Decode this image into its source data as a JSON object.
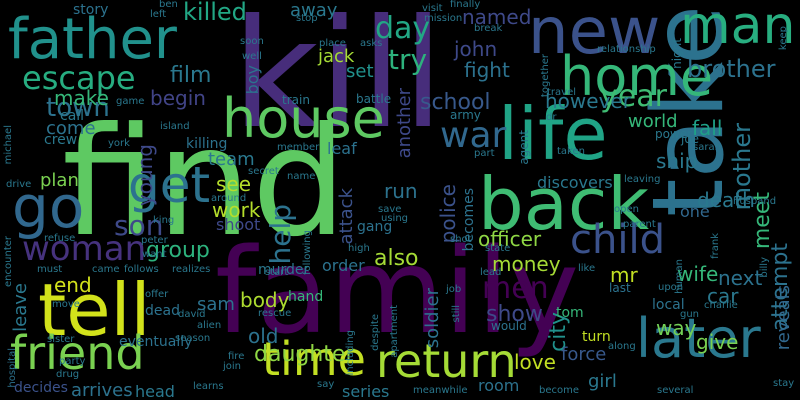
{
  "words": [
    {
      "text": "find",
      "color": "#5ec962",
      "rot": 0
    },
    {
      "text": "family",
      "color": "#440154",
      "rot": 0
    },
    {
      "text": "take",
      "color": "#2c728e",
      "rot": 90
    },
    {
      "text": "kill",
      "color": "#472d7b",
      "rot": 0
    },
    {
      "text": "father",
      "color": "#21918c",
      "rot": 0
    },
    {
      "text": "new",
      "color": "#3b528b",
      "rot": 0
    },
    {
      "text": "man",
      "color": "#28ae80",
      "rot": 0
    },
    {
      "text": "life",
      "color": "#20a486",
      "rot": 0
    },
    {
      "text": "back",
      "color": "#3fbc73",
      "rot": 0
    },
    {
      "text": "house",
      "color": "#5ec962",
      "rot": 0
    },
    {
      "text": "home",
      "color": "#35b779",
      "rot": 0
    },
    {
      "text": "tell",
      "color": "#d2e21b",
      "rot": 0
    },
    {
      "text": "go",
      "color": "#31688e",
      "rot": 0
    },
    {
      "text": "get",
      "color": "#2c728e",
      "rot": 0
    },
    {
      "text": "friend",
      "color": "#7ad151",
      "rot": 0
    },
    {
      "text": "time",
      "color": "#c2df23",
      "rot": 0
    },
    {
      "text": "return",
      "color": "#a5db36",
      "rot": 0
    },
    {
      "text": "later",
      "color": "#2a788e",
      "rot": 0
    },
    {
      "text": "child",
      "color": "#3b528b",
      "rot": 0
    },
    {
      "text": "woman",
      "color": "#46327e",
      "rot": 0
    },
    {
      "text": "escape",
      "color": "#27ad81",
      "rot": 0
    },
    {
      "text": "day",
      "color": "#22a785",
      "rot": 0
    },
    {
      "text": "try",
      "color": "#2db27d",
      "rot": 0
    },
    {
      "text": "war",
      "color": "#31688e",
      "rot": 0
    },
    {
      "text": "year",
      "color": "#3fbc73",
      "rot": 0
    },
    {
      "text": "brother",
      "color": "#2c728e",
      "rot": 0
    },
    {
      "text": "town",
      "color": "#2c728e",
      "rot": 0
    },
    {
      "text": "son",
      "color": "#3e4989",
      "rot": 0
    },
    {
      "text": "men",
      "color": "#440154",
      "rot": 0
    },
    {
      "text": "way",
      "color": "#73d056",
      "rot": 0
    },
    {
      "text": "killed",
      "color": "#22a785",
      "rot": 0
    },
    {
      "text": "film",
      "color": "#2a788e",
      "rot": 0
    },
    {
      "text": "make",
      "color": "#35b779",
      "rot": 0
    },
    {
      "text": "begin",
      "color": "#414487",
      "rot": 0
    },
    {
      "text": "school",
      "color": "#38598c",
      "rot": 0
    },
    {
      "text": "however",
      "color": "#2a788e",
      "rot": 0
    },
    {
      "text": "john",
      "color": "#3e4989",
      "rot": 0
    },
    {
      "text": "fight",
      "color": "#2c728e",
      "rot": 0
    },
    {
      "text": "jack",
      "color": "#a5db36",
      "rot": 0
    },
    {
      "text": "set",
      "color": "#21918c",
      "rot": 0
    },
    {
      "text": "named",
      "color": "#3e4989",
      "rot": 0
    },
    {
      "text": "mother",
      "color": "#2a788e",
      "rot": 90
    },
    {
      "text": "help",
      "color": "#2c728e",
      "rot": 90
    },
    {
      "text": "group",
      "color": "#2db27d",
      "rot": 0
    },
    {
      "text": "death",
      "color": "#2a788e",
      "rot": 0
    },
    {
      "text": "see",
      "color": "#b5de2b",
      "rot": 0
    },
    {
      "text": "work",
      "color": "#b5de2b",
      "rot": 0
    },
    {
      "text": "meet",
      "color": "#35b779",
      "rot": 90
    },
    {
      "text": "attempt",
      "color": "#2c728e",
      "rot": 90
    },
    {
      "text": "city",
      "color": "#21918c",
      "rot": 90
    },
    {
      "text": "show",
      "color": "#3e4989",
      "rot": 0
    },
    {
      "text": "also",
      "color": "#a5db36",
      "rot": 0
    },
    {
      "text": "love",
      "color": "#c2df23",
      "rot": 0
    },
    {
      "text": "daughter",
      "color": "#8fd744",
      "rot": 0
    },
    {
      "text": "body",
      "color": "#addc30",
      "rot": 0
    },
    {
      "text": "old",
      "color": "#2c728e",
      "rot": 0
    },
    {
      "text": "give",
      "color": "#7ad151",
      "rot": 0
    },
    {
      "text": "fall",
      "color": "#1fa088",
      "rot": 0
    },
    {
      "text": "team",
      "color": "#2a788e",
      "rot": 0
    },
    {
      "text": "plan",
      "color": "#7ad151",
      "rot": 0
    },
    {
      "text": "end",
      "color": "#d2e21b",
      "rot": 0
    },
    {
      "text": "run",
      "color": "#2c728e",
      "rot": 0
    },
    {
      "text": "police",
      "color": "#3b528b",
      "rot": 90
    },
    {
      "text": "officer",
      "color": "#8fd744",
      "rot": 0
    },
    {
      "text": "money",
      "color": "#a5db36",
      "rot": 0
    },
    {
      "text": "wife",
      "color": "#35b779",
      "rot": 0
    },
    {
      "text": "next",
      "color": "#2c728e",
      "rot": 0
    },
    {
      "text": "car",
      "color": "#2a788e",
      "rot": 0
    },
    {
      "text": "ship",
      "color": "#2a788e",
      "rot": 0
    },
    {
      "text": "world",
      "color": "#35b779",
      "rot": 0
    },
    {
      "text": "come",
      "color": "#2c728e",
      "rot": 0
    },
    {
      "text": "discovers",
      "color": "#2a788e",
      "rot": 0
    },
    {
      "text": "another",
      "color": "#3e4989",
      "rot": 90
    },
    {
      "text": "soldier",
      "color": "#2c728e",
      "rot": 90
    },
    {
      "text": "attack",
      "color": "#3b528b",
      "rot": 90
    },
    {
      "text": "order",
      "color": "#2c728e",
      "rot": 0
    },
    {
      "text": "shoot",
      "color": "#3e4989",
      "rot": 0
    },
    {
      "text": "leave",
      "color": "#2a788e",
      "rot": 90
    },
    {
      "text": "force",
      "color": "#38598c",
      "rot": 0
    },
    {
      "text": "girl",
      "color": "#2a788e",
      "rot": 0
    },
    {
      "text": "room",
      "color": "#2c728e",
      "rot": 0
    },
    {
      "text": "series",
      "color": "#2a788e",
      "rot": 0
    },
    {
      "text": "head",
      "color": "#2a788e",
      "rot": 0
    },
    {
      "text": "arrives",
      "color": "#2c728e",
      "rot": 0
    },
    {
      "text": "decides",
      "color": "#3b528b",
      "rot": 0
    },
    {
      "text": "murder",
      "color": "#2a788e",
      "rot": 0
    },
    {
      "text": "reveals",
      "color": "#31688e",
      "rot": 90
    },
    {
      "text": "young",
      "color": "#3e4989",
      "rot": 90
    },
    {
      "text": "turn",
      "color": "#c2df23",
      "rot": 0
    },
    {
      "text": "mr",
      "color": "#c2df23",
      "rot": 0
    },
    {
      "text": "one",
      "color": "#31688e",
      "rot": 0
    },
    {
      "text": "away",
      "color": "#2a788e",
      "rot": 0
    },
    {
      "text": "boy",
      "color": "#2c728e",
      "rot": 90
    },
    {
      "text": "story",
      "color": "#2c728e",
      "rot": 0
    },
    {
      "text": "sam",
      "color": "#2c728e",
      "rot": 0
    },
    {
      "text": "leaf",
      "color": "#2c728e",
      "rot": 0
    },
    {
      "text": "becomes",
      "color": "#2c728e",
      "rot": 90
    },
    {
      "text": "gang",
      "color": "#2c728e",
      "rot": 0
    },
    {
      "text": "eventually",
      "color": "#2c728e",
      "rot": 0
    },
    {
      "text": "killing",
      "color": "#2c728e",
      "rot": 0
    },
    {
      "text": "call",
      "color": "#2a788e",
      "rot": 0
    },
    {
      "text": "crew",
      "color": "#2a788e",
      "rot": 0
    },
    {
      "text": "hand",
      "color": "#35b779",
      "rot": 0
    },
    {
      "text": "tom",
      "color": "#35b779",
      "rot": 0
    },
    {
      "text": "dead",
      "color": "#2c728e",
      "rot": 0
    },
    {
      "text": "last",
      "color": "#2c728e",
      "rot": 0
    },
    {
      "text": "local",
      "color": "#2c728e",
      "rot": 0
    },
    {
      "text": "would",
      "color": "#2c728e",
      "rot": 0
    },
    {
      "text": "hospital",
      "color": "#2c728e",
      "rot": 90
    },
    {
      "text": "soon",
      "color": "#2a788e",
      "rot": 0
    },
    {
      "text": "well",
      "color": "#2a788e",
      "rot": 0
    },
    {
      "text": "train",
      "color": "#2a788e",
      "rot": 0
    },
    {
      "text": "battle",
      "color": "#2a788e",
      "rot": 0
    },
    {
      "text": "army",
      "color": "#2a788e",
      "rot": 0
    },
    {
      "text": "travel",
      "color": "#2a788e",
      "rot": 0
    },
    {
      "text": "agent",
      "color": "#2a788e",
      "rot": 90
    },
    {
      "text": "power",
      "color": "#2a788e",
      "rot": 0
    },
    {
      "text": "joe",
      "color": "#2a788e",
      "rot": 0
    },
    {
      "text": "taken",
      "color": "#2a788e",
      "rot": 0
    },
    {
      "text": "leaving",
      "color": "#2a788e",
      "rot": 0
    },
    {
      "text": "husband",
      "color": "#2a788e",
      "rot": 0
    },
    {
      "text": "open",
      "color": "#2a788e",
      "rot": 0
    },
    {
      "text": "parent",
      "color": "#2a788e",
      "rot": 0
    },
    {
      "text": "frank",
      "color": "#2a788e",
      "rot": 90
    },
    {
      "text": "upon",
      "color": "#2a788e",
      "rot": 0
    },
    {
      "text": "gun",
      "color": "#2a788e",
      "rot": 0
    },
    {
      "text": "charlie",
      "color": "#2a788e",
      "rot": 0
    },
    {
      "text": "alien",
      "color": "#2a788e",
      "rot": 0
    },
    {
      "text": "david",
      "color": "#2a788e",
      "rot": 0
    },
    {
      "text": "rescue",
      "color": "#2a788e",
      "rot": 0
    },
    {
      "text": "offer",
      "color": "#2a788e",
      "rot": 0
    },
    {
      "text": "move",
      "color": "#2a788e",
      "rot": 0
    },
    {
      "text": "sister",
      "color": "#2a788e",
      "rot": 0
    },
    {
      "text": "party",
      "color": "#2a788e",
      "rot": 0
    },
    {
      "text": "drug",
      "color": "#2a788e",
      "rot": 0
    },
    {
      "text": "learns",
      "color": "#2a788e",
      "rot": 0
    },
    {
      "text": "fire",
      "color": "#2a788e",
      "rot": 0
    },
    {
      "text": "join",
      "color": "#2a788e",
      "rot": 0
    },
    {
      "text": "say",
      "color": "#2a788e",
      "rot": 0
    },
    {
      "text": "several",
      "color": "#2a788e",
      "rot": 0
    },
    {
      "text": "become",
      "color": "#2a788e",
      "rot": 0
    },
    {
      "text": "meanwhile",
      "color": "#2a788e",
      "rot": 0
    },
    {
      "text": "apartment",
      "color": "#2a788e",
      "rot": 90
    },
    {
      "text": "despite",
      "color": "#2a788e",
      "rot": 90
    },
    {
      "text": "including",
      "color": "#2a788e",
      "rot": 90
    },
    {
      "text": "still",
      "color": "#2a788e",
      "rot": 90
    },
    {
      "text": "job",
      "color": "#2a788e",
      "rot": 0
    },
    {
      "text": "lead",
      "color": "#2a788e",
      "rot": 0
    },
    {
      "text": "state",
      "color": "#2a788e",
      "rot": 0
    },
    {
      "text": "shot",
      "color": "#2a788e",
      "rot": 0
    },
    {
      "text": "high",
      "color": "#2a788e",
      "rot": 0
    },
    {
      "text": "using",
      "color": "#2a788e",
      "rot": 0
    },
    {
      "text": "save",
      "color": "#2a788e",
      "rot": 0
    },
    {
      "text": "following",
      "color": "#2a788e",
      "rot": 90
    },
    {
      "text": "name",
      "color": "#2a788e",
      "rot": 0
    },
    {
      "text": "start",
      "color": "#2a788e",
      "rot": 0
    },
    {
      "text": "around",
      "color": "#2a788e",
      "rot": 0
    },
    {
      "text": "secret",
      "color": "#2a788e",
      "rot": 0
    },
    {
      "text": "member",
      "color": "#2a788e",
      "rot": 0
    },
    {
      "text": "king",
      "color": "#2a788e",
      "rot": 0
    },
    {
      "text": "peter",
      "color": "#2a788e",
      "rot": 0
    },
    {
      "text": "want",
      "color": "#2a788e",
      "rot": 0
    },
    {
      "text": "follows",
      "color": "#2a788e",
      "rot": 0
    },
    {
      "text": "realizes",
      "color": "#2a788e",
      "rot": 0
    },
    {
      "text": "must",
      "color": "#2a788e",
      "rot": 0
    },
    {
      "text": "came",
      "color": "#2a788e",
      "rot": 0
    },
    {
      "text": "refuse",
      "color": "#2a788e",
      "rot": 0
    },
    {
      "text": "encounter",
      "color": "#2a788e",
      "rot": 90
    },
    {
      "text": "drive",
      "color": "#2a788e",
      "rot": 0
    },
    {
      "text": "michael",
      "color": "#2a788e",
      "rot": 90
    },
    {
      "text": "island",
      "color": "#2a788e",
      "rot": 0
    },
    {
      "text": "york",
      "color": "#2a788e",
      "rot": 0
    },
    {
      "text": "game",
      "color": "#2a788e",
      "rot": 0
    },
    {
      "text": "place",
      "color": "#2a788e",
      "rot": 0
    },
    {
      "text": "asks",
      "color": "#2a788e",
      "rot": 0
    },
    {
      "text": "stop",
      "color": "#2a788e",
      "rot": 0
    },
    {
      "text": "visit",
      "color": "#2a788e",
      "rot": 0
    },
    {
      "text": "mission",
      "color": "#2a788e",
      "rot": 0
    },
    {
      "text": "finally",
      "color": "#2a788e",
      "rot": 0
    },
    {
      "text": "break",
      "color": "#2a788e",
      "rot": 0
    },
    {
      "text": "night",
      "color": "#2a788e",
      "rot": 90
    },
    {
      "text": "keep",
      "color": "#2a788e",
      "rot": 90
    },
    {
      "text": "relationship",
      "color": "#2a788e",
      "rot": 0
    },
    {
      "text": "together",
      "color": "#2a788e",
      "rot": 90
    },
    {
      "text": "ben",
      "color": "#2a788e",
      "rot": 0
    },
    {
      "text": "left",
      "color": "#2a788e",
      "rot": 0
    },
    {
      "text": "dr",
      "color": "#2a788e",
      "rot": 0
    },
    {
      "text": "part",
      "color": "#2a788e",
      "rot": 0
    },
    {
      "text": "sarah",
      "color": "#2a788e",
      "rot": 0
    },
    {
      "text": "billy",
      "color": "#2a788e",
      "rot": 90
    },
    {
      "text": "human",
      "color": "#2a788e",
      "rot": 90
    },
    {
      "text": "like",
      "color": "#2a788e",
      "rot": 0
    },
    {
      "text": "along",
      "color": "#2a788e",
      "rot": 0
    },
    {
      "text": "season",
      "color": "#2a788e",
      "rot": 0
    },
    {
      "text": "stay",
      "color": "#2a788e",
      "rot": 0
    }
  ]
}
